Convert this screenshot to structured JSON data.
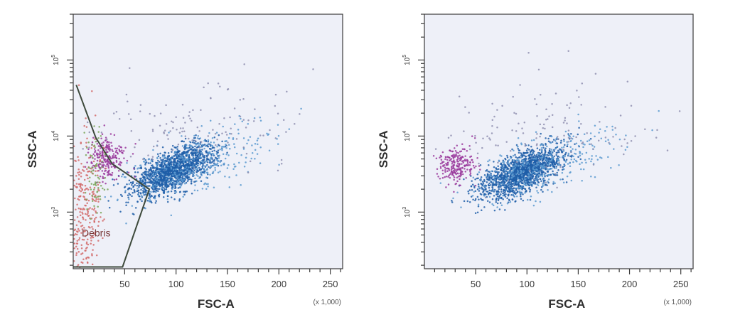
{
  "chart_data": [
    {
      "type": "scatter",
      "xlabel": "FSC-A",
      "ylabel": "SSC-A",
      "x_unit_label": "(x 1,000)",
      "x_tick_labels": [
        "50",
        "100",
        "150",
        "200",
        "250"
      ],
      "x_ticks": [
        50,
        100,
        150,
        200,
        250
      ],
      "xlim": [
        0,
        262
      ],
      "y_scale": "log",
      "y_ticks": [
        {
          "value": 1000,
          "base": "10",
          "exp": "3"
        },
        {
          "value": 10000,
          "base": "10",
          "exp": "4"
        },
        {
          "value": 100000,
          "base": "10",
          "exp": "5"
        }
      ],
      "ylim": [
        180,
        400000
      ],
      "gate": {
        "label": "Debris",
        "color": "#3e4a3c",
        "vertices": [
          [
            3,
            47000
          ],
          [
            22,
            9500
          ],
          [
            38,
            4300
          ],
          [
            74,
            2000
          ],
          [
            48,
            190
          ],
          [
            0,
            190
          ]
        ]
      },
      "populations": [
        {
          "name": "main",
          "color": "#1f5ea8",
          "center_x": 98,
          "center_y": 3600,
          "spread_x": 20,
          "spread_y_log": 0.13,
          "slope": 0.0055,
          "count": 1500
        },
        {
          "name": "main-halo",
          "color": "#5a9ad0",
          "center_x": 115,
          "center_y": 4200,
          "spread_x": 34,
          "spread_y_log": 0.18,
          "slope": 0.0045,
          "count": 380
        },
        {
          "name": "purple",
          "color": "#9a3a9c",
          "center_x": 33,
          "center_y": 5200,
          "spread_x": 9,
          "spread_y_log": 0.13,
          "slope": 0.0,
          "count": 230
        },
        {
          "name": "debris-red",
          "color": "#d26a6a",
          "center_x": 11,
          "center_y": 900,
          "spread_x": 8,
          "spread_y_log": 0.55,
          "slope": 0.0,
          "count": 280
        },
        {
          "name": "green",
          "color": "#7aa65a",
          "center_x": 21,
          "center_y": 3100,
          "spread_x": 5,
          "spread_y_log": 0.28,
          "slope": 0.0,
          "count": 70
        },
        {
          "name": "sparse-high",
          "color": "#8f8fb0",
          "center_x": 120,
          "center_y": 14000,
          "spread_x": 55,
          "spread_y_log": 0.32,
          "slope": 0.0,
          "count": 130
        }
      ]
    },
    {
      "type": "scatter",
      "xlabel": "FSC-A",
      "ylabel": "SSC-A",
      "x_unit_label": "(x 1,000)",
      "x_tick_labels": [
        "50",
        "100",
        "150",
        "200",
        "250"
      ],
      "x_ticks": [
        50,
        100,
        150,
        200,
        250
      ],
      "xlim": [
        0,
        262
      ],
      "y_scale": "log",
      "y_ticks": [
        {
          "value": 1000,
          "base": "10",
          "exp": "3"
        },
        {
          "value": 10000,
          "base": "10",
          "exp": "4"
        },
        {
          "value": 100000,
          "base": "10",
          "exp": "5"
        }
      ],
      "ylim": [
        180,
        400000
      ],
      "populations": [
        {
          "name": "main",
          "color": "#1f5ea8",
          "center_x": 95,
          "center_y": 3300,
          "spread_x": 20,
          "spread_y_log": 0.13,
          "slope": 0.0055,
          "count": 1500
        },
        {
          "name": "main-halo",
          "color": "#5a9ad0",
          "center_x": 112,
          "center_y": 4000,
          "spread_x": 34,
          "spread_y_log": 0.18,
          "slope": 0.0045,
          "count": 380
        },
        {
          "name": "purple",
          "color": "#9a3a9c",
          "center_x": 30,
          "center_y": 4300,
          "spread_x": 9,
          "spread_y_log": 0.12,
          "slope": 0.0,
          "count": 230
        },
        {
          "name": "sparse-high",
          "color": "#8f8fb0",
          "center_x": 118,
          "center_y": 13000,
          "spread_x": 55,
          "spread_y_log": 0.32,
          "slope": 0.0,
          "count": 130
        }
      ]
    }
  ]
}
